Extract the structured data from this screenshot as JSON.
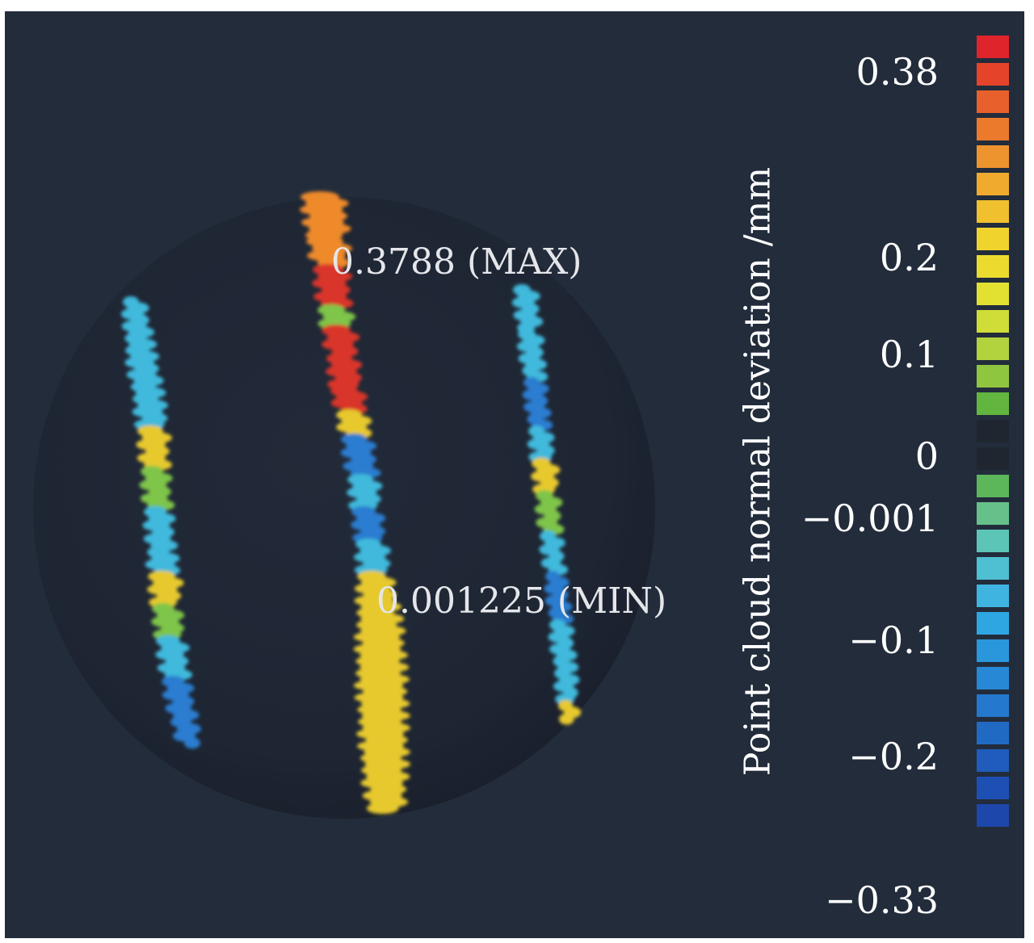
{
  "annotations": {
    "max_label": "0.3788 (MAX)",
    "min_label": "0.001225 (MIN)"
  },
  "colorbar": {
    "title": "Point cloud normal deviation /mm",
    "ticks": [
      {
        "label": "0.38",
        "value": 0.38
      },
      {
        "label": "0.2",
        "value": 0.2
      },
      {
        "label": "0.1",
        "value": 0.1
      },
      {
        "label": "0",
        "value": 0
      },
      {
        "label": "−0.001",
        "value": -0.001
      },
      {
        "label": "−0.1",
        "value": -0.1
      },
      {
        "label": "−0.2",
        "value": -0.2
      },
      {
        "label": "−0.33",
        "value": -0.33
      }
    ],
    "swatches": [
      "#e0242b",
      "#e6432b",
      "#e8602b",
      "#ec7a2d",
      "#ee942f",
      "#f0ab2f",
      "#f1c02e",
      "#f1d32e",
      "#ecdb2e",
      "#e2e030",
      "#d0dc38",
      "#b2d23e",
      "#8fc63f",
      "#62b53e",
      "#1f2630",
      "#1f2630",
      "#5cb65a",
      "#66c08a",
      "#5cc5b8",
      "#4fbfd2",
      "#3fb4e0",
      "#2ea6e2",
      "#2a96dc",
      "#2788d5",
      "#2478cd",
      "#216ac4",
      "#1f5cbc",
      "#1e50b3",
      "#1d47ab"
    ],
    "background": "#ffffff",
    "plot_background": "#222c3b"
  },
  "scene": {
    "sphere_color": "#1f2635",
    "stripe_colors": {
      "red": "#d9342a",
      "orange": "#ef8a2c",
      "yellow": "#e7c92f",
      "green": "#7ec54a",
      "cyan": "#3fb9dc",
      "blue": "#2c7dd0"
    }
  }
}
